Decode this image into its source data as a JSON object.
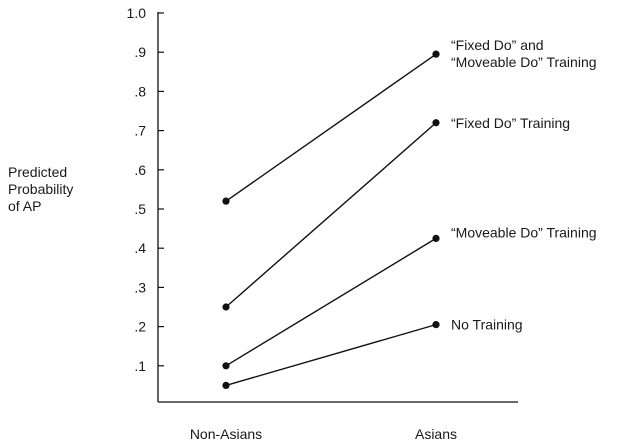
{
  "chart_data": {
    "type": "line",
    "categories": [
      "Non-Asians",
      "Asians"
    ],
    "ylabel": [
      "Predicted",
      "Probability",
      "of AP"
    ],
    "yticks": [
      "1.0",
      ".9",
      ".8",
      ".7",
      ".6",
      ".5",
      ".4",
      ".3",
      ".2",
      ".1"
    ],
    "ylim": [
      0,
      1.0
    ],
    "series": [
      {
        "name": [
          "“Fixed Do” and",
          "“Moveable Do” Training"
        ],
        "values": [
          0.52,
          0.895
        ]
      },
      {
        "name": [
          "“Fixed Do” Training"
        ],
        "values": [
          0.25,
          0.72
        ]
      },
      {
        "name": [
          "“Moveable  Do” Training"
        ],
        "values": [
          0.1,
          0.425
        ]
      },
      {
        "name": [
          "No Training"
        ],
        "values": [
          0.05,
          0.205
        ]
      }
    ]
  }
}
